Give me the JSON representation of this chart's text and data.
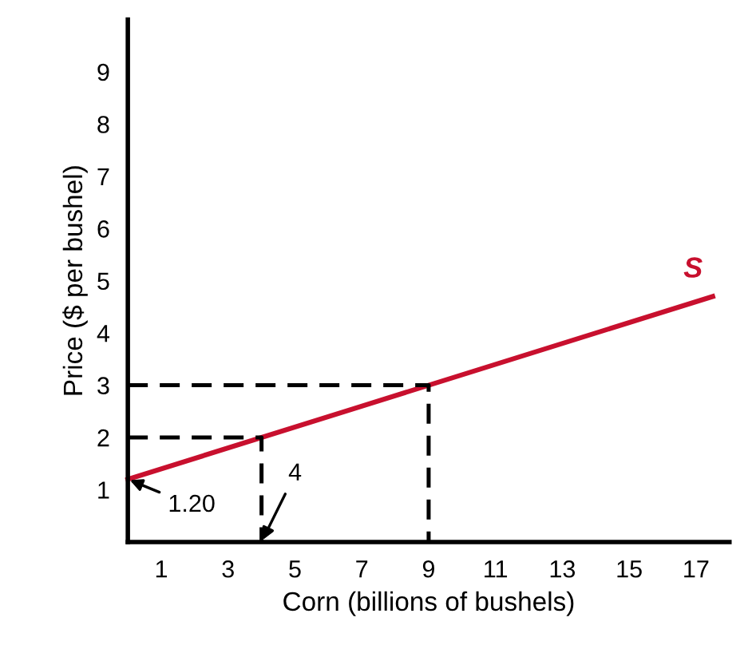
{
  "chart_data": {
    "type": "line",
    "xlabel": "Corn (billions of bushels)",
    "ylabel": "Price ($ per bushel)",
    "xlim": [
      0,
      18
    ],
    "ylim": [
      0,
      10
    ],
    "xticks": [
      1,
      3,
      5,
      7,
      9,
      11,
      13,
      15,
      17
    ],
    "yticks": [
      1,
      2,
      3,
      4,
      5,
      6,
      7,
      8,
      9
    ],
    "grid": false,
    "legend": false,
    "marker": "none",
    "series": [
      {
        "name": "S",
        "color": "#c8102e",
        "x": [
          0,
          17.5
        ],
        "values": [
          1.2,
          4.7
        ],
        "line_style": "solid"
      },
      {
        "color": "#000000",
        "x": [
          0,
          9,
          9
        ],
        "values": [
          3,
          3,
          0
        ],
        "line_style": "dashed"
      },
      {
        "color": "#000000",
        "x": [
          0,
          4,
          4
        ],
        "values": [
          2,
          2,
          0
        ],
        "line_style": "dashed"
      }
    ],
    "annotations": [
      {
        "text": "1.20",
        "x": 0,
        "y": 1.2
      },
      {
        "text": "4",
        "x": 4,
        "y": 0
      }
    ]
  }
}
